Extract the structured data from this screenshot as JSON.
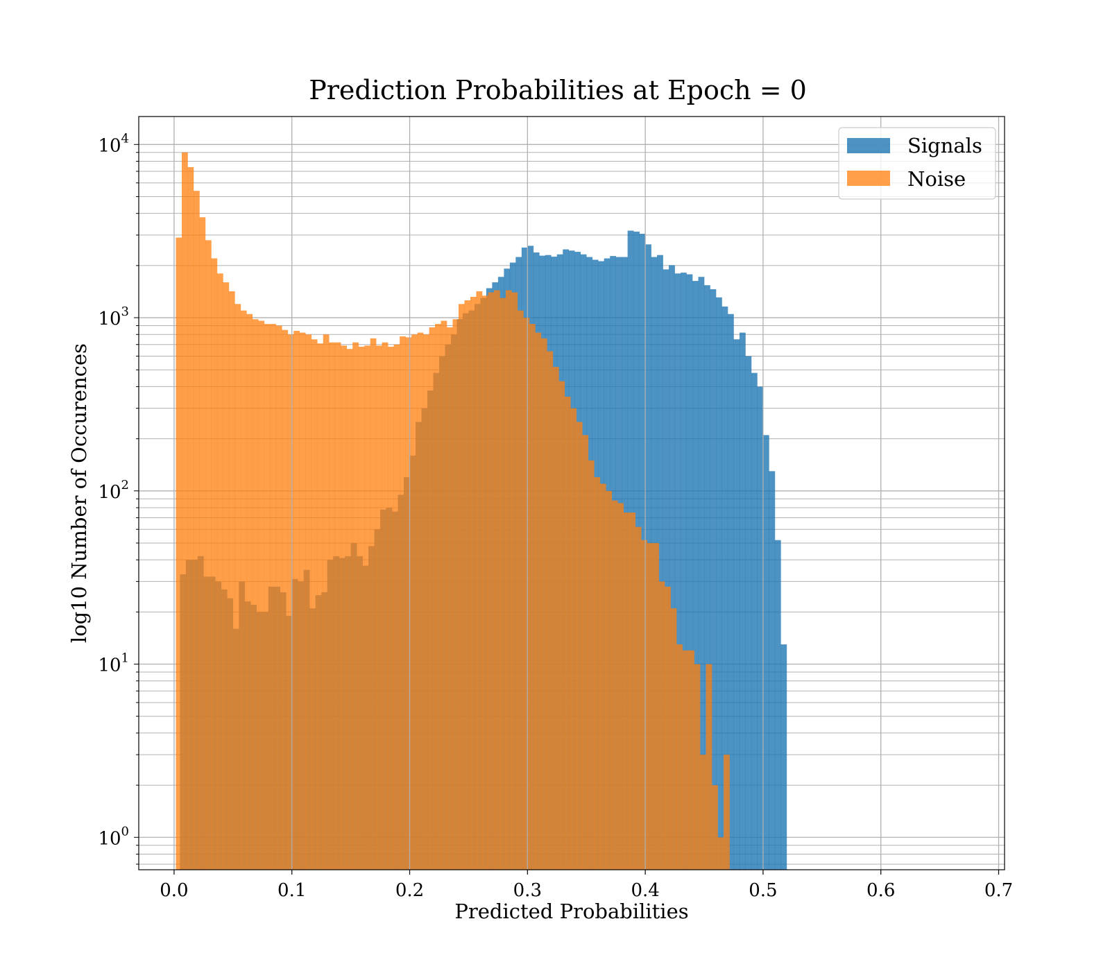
{
  "chart_data": {
    "type": "bar",
    "title": "Prediction Probabilities at Epoch = 0",
    "xlabel": "Predicted Probabilities",
    "ylabel": "log10 Number of Occurences",
    "xlim": [
      -0.03,
      0.705
    ],
    "ylim": [
      0.65,
      14500
    ],
    "yscale": "log",
    "grid": true,
    "legend_position": "top-right",
    "xticks": [
      {
        "value": 0.0,
        "label": "0.0"
      },
      {
        "value": 0.1,
        "label": "0.1"
      },
      {
        "value": 0.2,
        "label": "0.2"
      },
      {
        "value": 0.3,
        "label": "0.3"
      },
      {
        "value": 0.4,
        "label": "0.4"
      },
      {
        "value": 0.5,
        "label": "0.5"
      },
      {
        "value": 0.6,
        "label": "0.6"
      },
      {
        "value": 0.7,
        "label": "0.7"
      }
    ],
    "yticks": [
      {
        "value": 1,
        "base": "10",
        "exp": "0"
      },
      {
        "value": 10,
        "base": "10",
        "exp": "1"
      },
      {
        "value": 100,
        "base": "10",
        "exp": "2"
      },
      {
        "value": 1000,
        "base": "10",
        "exp": "3"
      },
      {
        "value": 10000,
        "base": "10",
        "exp": "4"
      }
    ],
    "series": [
      {
        "name": "Signals",
        "color": "#1f77b4",
        "opacity": 0.8,
        "bin_start": 0.005,
        "bin_width": 0.005,
        "values": [
          33,
          40,
          40,
          42,
          32,
          32,
          30,
          27,
          24,
          16,
          30,
          23,
          22,
          20,
          20,
          28,
          28,
          26,
          19,
          31,
          30,
          35,
          21,
          25,
          26,
          40,
          42,
          41,
          42,
          50,
          42,
          37,
          48,
          60,
          78,
          80,
          76,
          95,
          120,
          160,
          250,
          300,
          380,
          480,
          600,
          700,
          800,
          980,
          1060,
          1100,
          1200,
          1300,
          1480,
          1600,
          1720,
          1920,
          2080,
          2240,
          2540,
          2600,
          2380,
          2280,
          2300,
          2250,
          2320,
          2480,
          2440,
          2400,
          2320,
          2240,
          2160,
          2120,
          2200,
          2270,
          2240,
          2240,
          3180,
          3140,
          3050,
          2650,
          2240,
          2300,
          1900,
          2010,
          1800,
          1820,
          1780,
          1630,
          1720,
          1540,
          1460,
          1310,
          1160,
          1050,
          750,
          820,
          600,
          480,
          400,
          210,
          130,
          52,
          13
        ]
      },
      {
        "name": "Noise",
        "color": "#ff7f0e",
        "opacity": 0.75,
        "bin_start": 0.0015,
        "bin_width": 0.005,
        "values": [
          2900,
          9000,
          7400,
          5400,
          3800,
          2800,
          2200,
          1800,
          1600,
          1420,
          1200,
          1100,
          1050,
          980,
          960,
          920,
          920,
          900,
          850,
          800,
          840,
          820,
          800,
          750,
          710,
          800,
          720,
          720,
          690,
          660,
          720,
          680,
          690,
          760,
          690,
          720,
          680,
          700,
          780,
          770,
          800,
          820,
          800,
          880,
          920,
          960,
          880,
          980,
          1200,
          1260,
          1320,
          1420,
          1340,
          1400,
          1440,
          1300,
          1440,
          1400,
          1100,
          1000,
          920,
          820,
          760,
          640,
          520,
          430,
          350,
          300,
          250,
          210,
          150,
          120,
          110,
          100,
          88,
          85,
          75,
          75,
          62,
          52,
          50,
          50,
          30,
          28,
          21,
          13,
          12,
          12,
          10,
          3,
          10,
          2,
          1,
          3
        ]
      }
    ]
  }
}
